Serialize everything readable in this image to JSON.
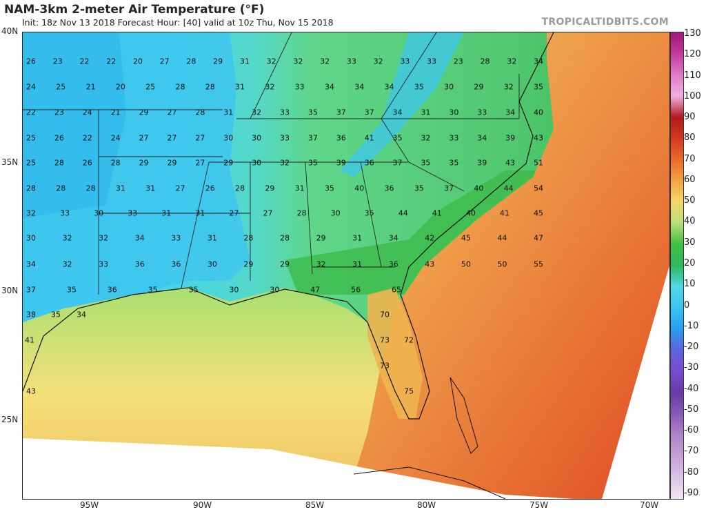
{
  "header": {
    "title": "NAM-3km 2-meter Air Temperature (°F)",
    "subtitle": "Init: 18z Nov 13 2018   Forecast Hour: [40]   valid at 10z Thu, Nov 15 2018",
    "credit": "TROPICALTIDBITS.COM"
  },
  "map": {
    "lat_labels": [
      "40N",
      "35N",
      "30N",
      "25N"
    ],
    "lon_labels": [
      "95W",
      "90W",
      "85W",
      "80W",
      "75W",
      "70W"
    ]
  },
  "colorbar": {
    "ticks": [
      "130",
      "120",
      "110",
      "100",
      "90",
      "80",
      "70",
      "60",
      "50",
      "40",
      "30",
      "20",
      "10",
      "0",
      "-10",
      "-20",
      "-30",
      "-40",
      "-50",
      "-60",
      "-70",
      "-80",
      "-90"
    ],
    "colors": [
      "#a3167a",
      "#c2399a",
      "#e07bc8",
      "#f0b0e4",
      "#b11a1a",
      "#d43a1e",
      "#ea6a2a",
      "#f4a440",
      "#f6d86a",
      "#b8e07a",
      "#3fbf3f",
      "#2fb860",
      "#54d6e8",
      "#38c6f0",
      "#2a9cf0",
      "#5a64e0",
      "#7a4ad0",
      "#6a3aa8",
      "#8a5ab8",
      "#b084c8",
      "#c8a0d8",
      "#dcc4e8",
      "#f2e6f6"
    ]
  },
  "station_temps": [
    [
      "26",
      "23",
      "22",
      "22",
      "20",
      "27",
      "28",
      "29",
      "31",
      "32",
      "32",
      "32",
      "33",
      "32",
      "33",
      "33",
      "23",
      "28",
      "32",
      "34"
    ],
    [
      "24",
      "25",
      "21",
      "20",
      "25",
      "28",
      "28",
      "31",
      "32",
      "33",
      "34",
      "34",
      "34",
      "35",
      "30",
      "29",
      "32",
      "35"
    ],
    [
      "22",
      "23",
      "24",
      "21",
      "29",
      "27",
      "28",
      "31",
      "32",
      "33",
      "35",
      "37",
      "37",
      "34",
      "31",
      "30",
      "33",
      "34",
      "40"
    ],
    [
      "25",
      "26",
      "22",
      "24",
      "27",
      "27",
      "27",
      "30",
      "30",
      "33",
      "37",
      "36",
      "41",
      "35",
      "32",
      "33",
      "34",
      "39",
      "43"
    ],
    [
      "25",
      "28",
      "26",
      "28",
      "29",
      "29",
      "27",
      "29",
      "30",
      "32",
      "35",
      "39",
      "36",
      "37",
      "35",
      "35",
      "39",
      "43",
      "51"
    ],
    [
      "28",
      "28",
      "28",
      "31",
      "31",
      "27",
      "26",
      "28",
      "29",
      "31",
      "35",
      "40",
      "36",
      "35",
      "37",
      "40",
      "44",
      "54"
    ],
    [
      "32",
      "33",
      "30",
      "33",
      "31",
      "31",
      "27",
      "27",
      "28",
      "30",
      "35",
      "44",
      "41",
      "40",
      "41",
      "45"
    ],
    [
      "30",
      "32",
      "32",
      "34",
      "33",
      "31",
      "28",
      "28",
      "29",
      "31",
      "34",
      "42",
      "45",
      "44",
      "47"
    ],
    [
      "34",
      "32",
      "33",
      "36",
      "36",
      "30",
      "29",
      "29",
      "32",
      "31",
      "36",
      "43",
      "50",
      "50",
      "55"
    ],
    [
      "37",
      "35",
      "36",
      "35",
      "35",
      "30",
      "30",
      "47",
      "56",
      "65"
    ],
    [
      "38",
      "35",
      "34",
      "70"
    ],
    [
      "41",
      "73",
      "72"
    ],
    [
      "73"
    ],
    [
      "43",
      "75"
    ]
  ]
}
